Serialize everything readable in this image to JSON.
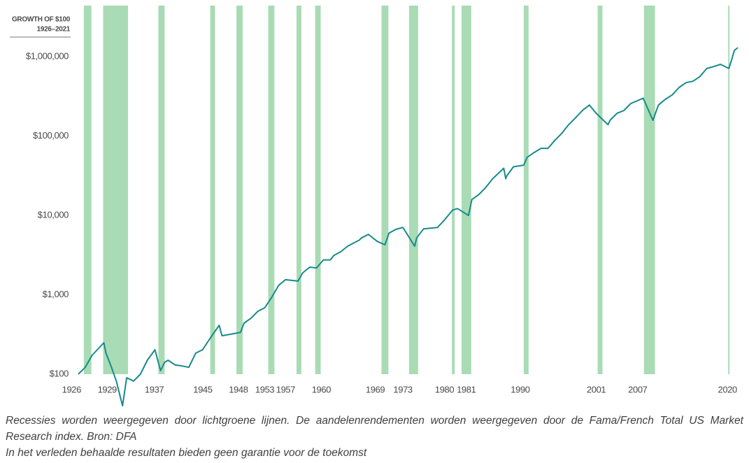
{
  "chart_data": {
    "type": "line",
    "title": "GROWTH OF $100",
    "subtitle": "1926–2021",
    "log_scale": true,
    "xlim": [
      1925.6,
      2021.8
    ],
    "ylim": [
      100,
      4400000
    ],
    "yticks": [
      {
        "value": 100,
        "label": "$100"
      },
      {
        "value": 1000,
        "label": "$1,000"
      },
      {
        "value": 10000,
        "label": "$10,000"
      },
      {
        "value": 100000,
        "label": "$100,000"
      },
      {
        "value": 1000000,
        "label": "$1,000,000"
      }
    ],
    "xticks": [
      1926,
      1929,
      1937,
      1945,
      1948,
      1953,
      1957,
      1960,
      1969,
      1973,
      1980,
      1981,
      1990,
      2001,
      2007,
      2020
    ],
    "recession_color": "#a9dbb4",
    "recessions": [
      [
        1926.8,
        1927.9
      ],
      [
        1929.6,
        1933.2
      ],
      [
        1937.6,
        1938.5
      ],
      [
        1945.1,
        1945.8
      ],
      [
        1948.9,
        1949.8
      ],
      [
        1953.5,
        1954.4
      ],
      [
        1957.6,
        1958.3
      ],
      [
        1960.3,
        1961.1
      ],
      [
        1969.9,
        1970.9
      ],
      [
        1973.9,
        1975.2
      ],
      [
        1980.1,
        1980.5
      ],
      [
        1981.5,
        1982.9
      ],
      [
        1990.5,
        1991.2
      ],
      [
        2001.2,
        2001.9
      ],
      [
        2007.9,
        2009.5
      ],
      [
        2020.1,
        2020.3
      ]
    ],
    "x": [
      1926,
      1927,
      1928,
      1929.7,
      1930,
      1930.8,
      1931.5,
      1932.4,
      1933,
      1934,
      1935,
      1936,
      1937.1,
      1937.9,
      1938.5,
      1939,
      1940,
      1941,
      1942,
      1943,
      1944,
      1945,
      1946.4,
      1946.8,
      1948,
      1949.5,
      1950,
      1951,
      1952,
      1953,
      1954,
      1955,
      1956,
      1957.8,
      1958.5,
      1959.5,
      1960.5,
      1961.5,
      1962.5,
      1963,
      1964,
      1965,
      1966.7,
      1967,
      1968,
      1969.3,
      1970.4,
      1971,
      1972,
      1973,
      1974.7,
      1975,
      1976,
      1977,
      1978,
      1979,
      1980.2,
      1980.9,
      1982.5,
      1983,
      1984,
      1985,
      1986,
      1987.6,
      1987.9,
      1988,
      1989,
      1990.5,
      1991,
      1992,
      1993,
      1994,
      1995,
      1996,
      1997,
      1998,
      1999,
      2000,
      2001,
      2002.7,
      2003,
      2004,
      2005,
      2006,
      2007.8,
      2009.2,
      2010,
      2011,
      2012,
      2013,
      2014,
      2015,
      2016,
      2017,
      2018,
      2019,
      2020.2,
      2020.6,
      2021,
      2021.5
    ],
    "series": [
      {
        "color": "#178a8c",
        "values": [
          100,
          122,
          173,
          249,
          184,
          122,
          82,
          40,
          90,
          82,
          100,
          150,
          203,
          111,
          141,
          150,
          131,
          127,
          122,
          184,
          203,
          276,
          413,
          305,
          318,
          337,
          440,
          506,
          620,
          687,
          930,
          1310,
          1550,
          1490,
          1890,
          2230,
          2180,
          2750,
          2750,
          3130,
          3480,
          4100,
          4900,
          5200,
          5770,
          4700,
          4270,
          6000,
          6680,
          7060,
          4100,
          5200,
          6780,
          6920,
          7060,
          8700,
          11700,
          12200,
          10000,
          15900,
          18300,
          22500,
          29000,
          39300,
          29000,
          31000,
          41000,
          43000,
          54000,
          62000,
          70000,
          70000,
          88000,
          108000,
          139000,
          170000,
          210000,
          246000,
          193000,
          139000,
          158000,
          193000,
          210000,
          257000,
          300000,
          158000,
          246000,
          290000,
          330000,
          410000,
          470000,
          490000,
          560000,
          710000,
          750000,
          800000,
          710000,
          910000,
          1200000,
          1300000
        ]
      }
    ]
  },
  "notes": {
    "caption": "Recessies worden weergegeven door lichtgroene lijnen. De aandelenrendementen worden weergegeven door de Fama/French Total US Market Research index. Bron: DFA",
    "disclaimer": "In het verleden behaalde resultaten bieden geen garantie voor de toekomst"
  }
}
